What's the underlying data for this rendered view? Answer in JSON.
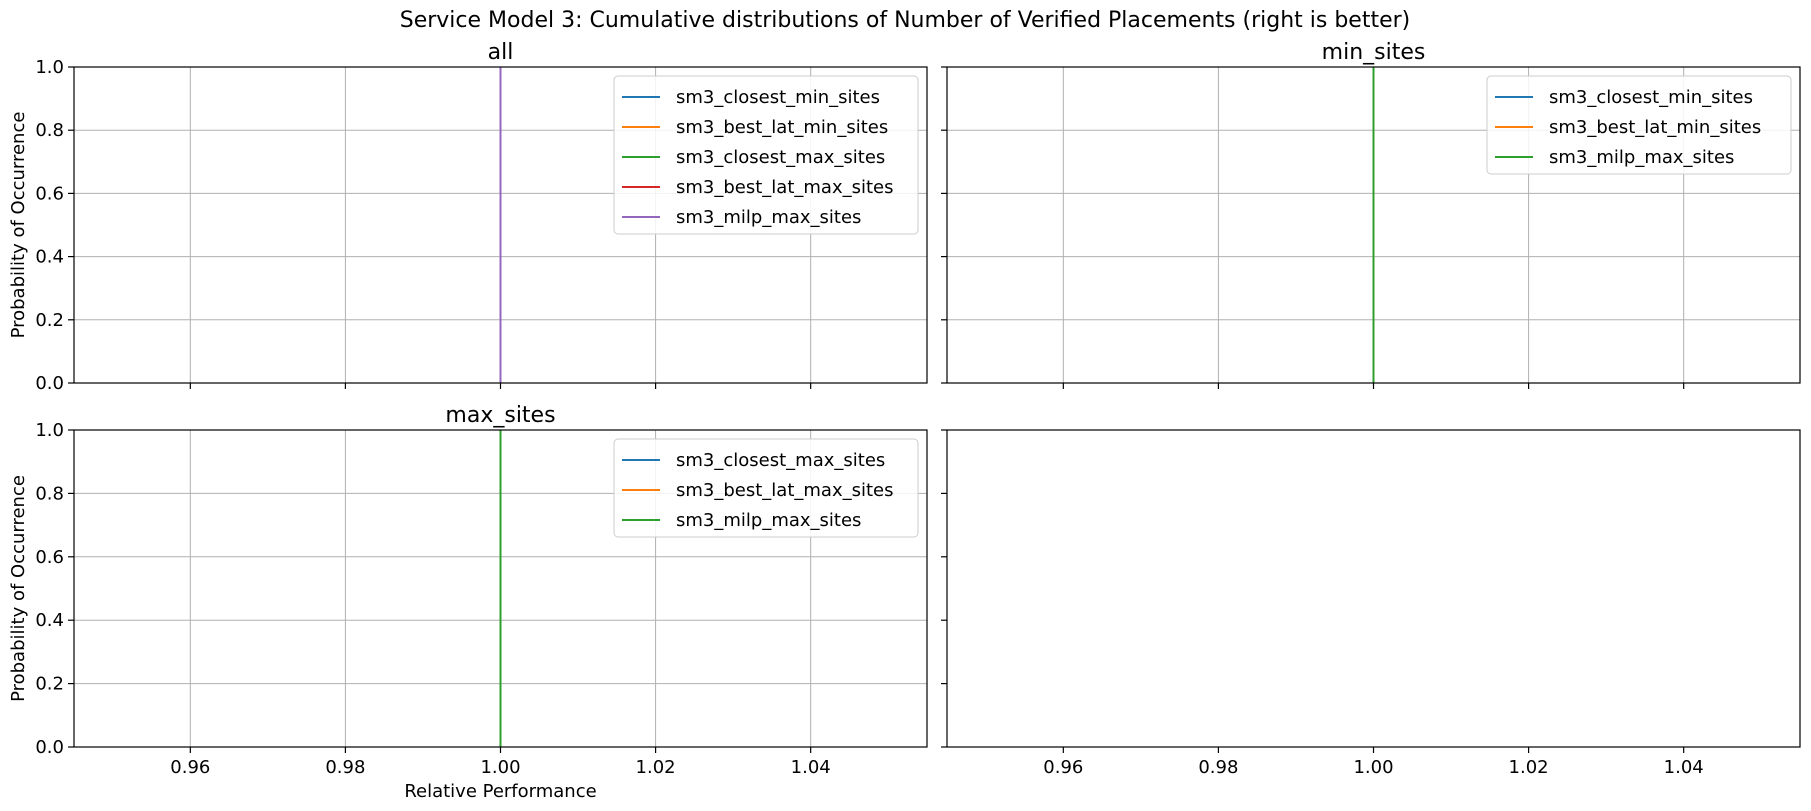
{
  "figure": {
    "title": "Service Model 3: Cumulative distributions of Number of Verified Placements (right is better)"
  },
  "chart_data": [
    {
      "type": "line",
      "title": "all",
      "xlabel": "",
      "ylabel": "Probability of Occurrence",
      "xlim": [
        0.945,
        1.055
      ],
      "ylim": [
        0.0,
        1.0
      ],
      "xticks": [],
      "yticks": [
        "0.0",
        "0.2",
        "0.4",
        "0.6",
        "0.8",
        "1.0"
      ],
      "grid": true,
      "legend_position": "top-right",
      "series": [
        {
          "name": "sm3_closest_min_sites",
          "color": "#1f77b4",
          "x": [
            1.0,
            1.0
          ],
          "y": [
            0.0,
            1.0
          ]
        },
        {
          "name": "sm3_best_lat_min_sites",
          "color": "#ff7f0e",
          "x": [
            1.0,
            1.0
          ],
          "y": [
            0.0,
            1.0
          ]
        },
        {
          "name": "sm3_closest_max_sites",
          "color": "#2ca02c",
          "x": [
            1.0,
            1.0
          ],
          "y": [
            0.0,
            1.0
          ]
        },
        {
          "name": "sm3_best_lat_max_sites",
          "color": "#d62728",
          "x": [
            1.0,
            1.0
          ],
          "y": [
            0.0,
            1.0
          ]
        },
        {
          "name": "sm3_milp_max_sites",
          "color": "#9467bd",
          "x": [
            1.0,
            1.0
          ],
          "y": [
            0.0,
            1.0
          ]
        }
      ]
    },
    {
      "type": "line",
      "title": "min_sites",
      "xlabel": "",
      "ylabel": "",
      "xlim": [
        0.945,
        1.055
      ],
      "ylim": [
        0.0,
        1.0
      ],
      "xticks": [],
      "yticks": [],
      "grid": true,
      "legend_position": "top-right",
      "series": [
        {
          "name": "sm3_closest_min_sites",
          "color": "#1f77b4",
          "x": [
            1.0,
            1.0
          ],
          "y": [
            0.0,
            1.0
          ]
        },
        {
          "name": "sm3_best_lat_min_sites",
          "color": "#ff7f0e",
          "x": [
            1.0,
            1.0
          ],
          "y": [
            0.0,
            1.0
          ]
        },
        {
          "name": "sm3_milp_max_sites",
          "color": "#2ca02c",
          "x": [
            1.0,
            1.0
          ],
          "y": [
            0.0,
            1.0
          ]
        }
      ]
    },
    {
      "type": "line",
      "title": "max_sites",
      "xlabel": "Relative Performance",
      "ylabel": "Probability of Occurrence",
      "xlim": [
        0.945,
        1.055
      ],
      "ylim": [
        0.0,
        1.0
      ],
      "xticks": [
        "0.96",
        "0.98",
        "1.00",
        "1.02",
        "1.04"
      ],
      "yticks": [
        "0.0",
        "0.2",
        "0.4",
        "0.6",
        "0.8",
        "1.0"
      ],
      "grid": true,
      "legend_position": "top-right",
      "series": [
        {
          "name": "sm3_closest_max_sites",
          "color": "#1f77b4",
          "x": [
            1.0,
            1.0
          ],
          "y": [
            0.0,
            1.0
          ]
        },
        {
          "name": "sm3_best_lat_max_sites",
          "color": "#ff7f0e",
          "x": [
            1.0,
            1.0
          ],
          "y": [
            0.0,
            1.0
          ]
        },
        {
          "name": "sm3_milp_max_sites",
          "color": "#2ca02c",
          "x": [
            1.0,
            1.0
          ],
          "y": [
            0.0,
            1.0
          ]
        }
      ]
    },
    {
      "type": "line",
      "title": "",
      "xlabel": "",
      "ylabel": "",
      "xlim": [
        0.945,
        1.055
      ],
      "ylim": [
        0.0,
        1.0
      ],
      "xticks": [
        "0.96",
        "0.98",
        "1.00",
        "1.02",
        "1.04"
      ],
      "yticks": [],
      "grid": false,
      "legend_position": "",
      "series": []
    }
  ]
}
